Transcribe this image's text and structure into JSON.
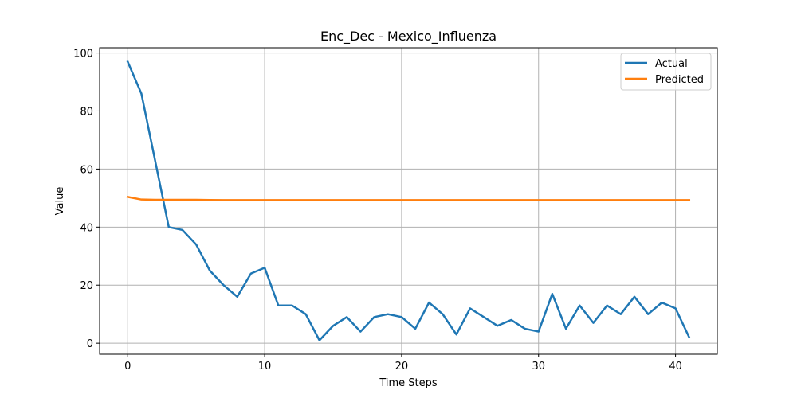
{
  "chart_data": {
    "type": "line",
    "title": "Enc_Dec - Mexico_Influenza",
    "xlabel": "Time Steps",
    "ylabel": "Value",
    "xlim": [
      -2.05,
      43.05
    ],
    "ylim": [
      -3.8,
      101.8
    ],
    "x_ticks": [
      0,
      10,
      20,
      30,
      40
    ],
    "y_ticks": [
      0,
      20,
      40,
      60,
      80,
      100
    ],
    "grid": true,
    "legend_position": "top-right",
    "x": [
      0,
      1,
      2,
      3,
      4,
      5,
      6,
      7,
      8,
      9,
      10,
      11,
      12,
      13,
      14,
      15,
      16,
      17,
      18,
      19,
      20,
      21,
      22,
      23,
      24,
      25,
      26,
      27,
      28,
      29,
      30,
      31,
      32,
      33,
      34,
      35,
      36,
      37,
      38,
      39,
      40,
      41
    ],
    "series": [
      {
        "name": "Actual",
        "color": "#1f77b4",
        "values": [
          97,
          86,
          63,
          40,
          39,
          34,
          25,
          20,
          16,
          24,
          26,
          13,
          13,
          10,
          1,
          6,
          9,
          4,
          9,
          10,
          9,
          5,
          14,
          10,
          3,
          12,
          9,
          6,
          8,
          5,
          4,
          17,
          5,
          13,
          7,
          13,
          10,
          16,
          10,
          14,
          12,
          2
        ]
      },
      {
        "name": "Predicted",
        "color": "#ff7f0e",
        "values": [
          50.4,
          49.5,
          49.4,
          49.4,
          49.4,
          49.4,
          49.35,
          49.3,
          49.3,
          49.3,
          49.3,
          49.3,
          49.3,
          49.3,
          49.3,
          49.3,
          49.3,
          49.3,
          49.3,
          49.3,
          49.3,
          49.3,
          49.3,
          49.3,
          49.3,
          49.3,
          49.3,
          49.3,
          49.3,
          49.3,
          49.3,
          49.3,
          49.3,
          49.3,
          49.3,
          49.3,
          49.3,
          49.3,
          49.3,
          49.3,
          49.3,
          49.3
        ]
      }
    ]
  }
}
